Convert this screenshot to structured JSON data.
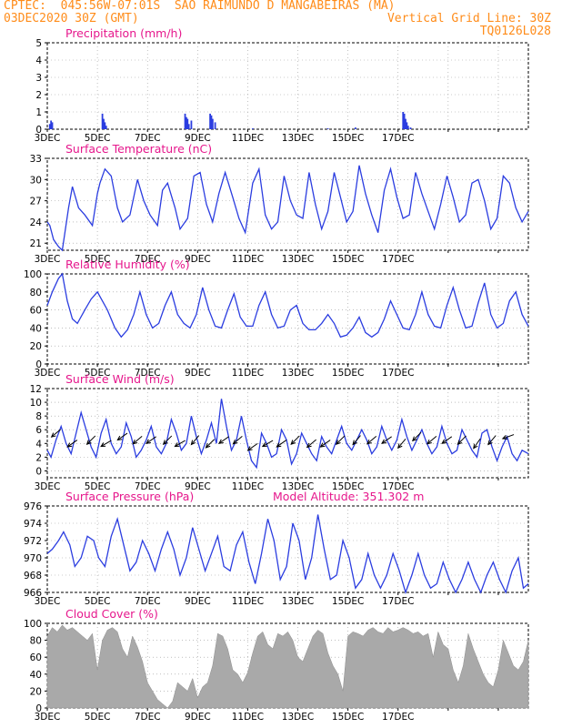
{
  "header": {
    "line1": "CPTEC:  045:56W-07:01S  SAO RAIMUNDO D MANGABEIRAS (MA)",
    "line2_left": "03DEC2020 30Z (GMT)",
    "line2_right": "Vertical Grid Line: 30Z",
    "line3_right": "TQ0126L028"
  },
  "colors": {
    "header": "#ff8c1a",
    "title": "#e6178c",
    "series": "#2b3de0",
    "cloud": "#a9a9a9"
  },
  "chart_data": [
    {
      "type": "bar",
      "title": "Precipitation (mm/h)",
      "ylim": [
        0,
        5
      ],
      "yticks": [
        0,
        1,
        2,
        3,
        4,
        5
      ],
      "xticks": [
        "3DEC",
        "5DEC",
        "7DEC",
        "9DEC",
        "11DEC",
        "13DEC",
        "15DEC",
        "17DEC"
      ],
      "x": [
        0.1,
        0.15,
        0.2,
        2.2,
        2.25,
        2.3,
        2.35,
        5.5,
        5.55,
        5.6,
        5.65,
        5.75,
        6.5,
        6.55,
        6.6,
        6.7,
        14.2,
        14.25,
        14.3,
        14.35,
        14.4,
        14.5,
        8.2,
        11.2,
        12.3
      ],
      "values": [
        0.3,
        0.5,
        0.4,
        0.9,
        0.6,
        0.4,
        0.2,
        0.9,
        0.7,
        0.6,
        0.3,
        0.5,
        0.9,
        0.8,
        0.6,
        0.4,
        1.0,
        0.9,
        0.6,
        0.4,
        0.2,
        0.1,
        0.05,
        0.05,
        0.1
      ]
    },
    {
      "type": "line",
      "title": "Surface Temperature (nC)",
      "ylim": [
        20,
        33
      ],
      "yticks": [
        21,
        24,
        27,
        30,
        33
      ],
      "xticks": [
        "3DEC",
        "5DEC",
        "7DEC",
        "9DEC",
        "11DEC",
        "13DEC",
        "15DEC",
        "17DEC"
      ],
      "x": [
        0,
        0.1,
        0.25,
        0.45,
        0.6,
        0.85,
        1.0,
        1.25,
        1.5,
        1.8,
        2.0,
        2.1,
        2.3,
        2.55,
        2.8,
        3.0,
        3.3,
        3.6,
        3.85,
        4.1,
        4.4,
        4.6,
        4.8,
        5.1,
        5.3,
        5.6,
        5.85,
        6.1,
        6.35,
        6.6,
        6.85,
        7.1,
        7.4,
        7.65,
        7.9,
        8.2,
        8.45,
        8.7,
        8.95,
        9.2,
        9.45,
        9.7,
        9.95,
        10.2,
        10.45,
        10.7,
        10.95,
        11.2,
        11.45,
        11.7,
        11.95,
        12.2,
        12.45,
        12.7,
        12.95,
        13.2,
        13.45,
        13.7,
        13.95,
        14.2,
        14.45,
        14.7,
        14.95,
        15.2,
        15.45,
        15.7,
        15.95,
        16.2,
        16.45,
        16.7,
        16.95,
        17.2,
        17.45,
        17.7,
        17.95,
        18.2,
        18.45,
        18.7,
        18.95,
        19.2
      ],
      "y": [
        24.0,
        23.5,
        21.5,
        20.5,
        20.0,
        26.0,
        29.0,
        26.0,
        25.0,
        23.5,
        28.0,
        29.5,
        31.5,
        30.5,
        26.0,
        24.0,
        25.0,
        30.0,
        27.0,
        25.0,
        23.5,
        28.5,
        29.5,
        26.0,
        23.0,
        24.5,
        30.5,
        31.0,
        26.5,
        24.0,
        28.0,
        31.0,
        27.5,
        24.5,
        22.5,
        29.5,
        31.5,
        25.0,
        23.0,
        24.0,
        30.5,
        27.0,
        25.0,
        24.5,
        31.0,
        26.5,
        23.0,
        25.5,
        31.0,
        27.5,
        24.0,
        25.5,
        32.0,
        28.0,
        25.0,
        22.5,
        28.5,
        31.5,
        27.5,
        24.5,
        25.0,
        31.0,
        28.0,
        25.5,
        23.0,
        26.5,
        30.5,
        27.5,
        24.0,
        25.0,
        29.5,
        30.0,
        27.0,
        23.0,
        24.5,
        30.5,
        29.5,
        26.0,
        24.0,
        25.5
      ]
    },
    {
      "type": "line",
      "title": "Relative Humidity (%)",
      "ylim": [
        0,
        100
      ],
      "yticks": [
        0,
        20,
        40,
        60,
        80,
        100
      ],
      "xticks": [
        "3DEC",
        "5DEC",
        "7DEC",
        "9DEC",
        "11DEC",
        "13DEC",
        "15DEC",
        "17DEC"
      ],
      "x": [
        0,
        0.2,
        0.45,
        0.6,
        0.8,
        1.0,
        1.2,
        1.5,
        1.75,
        2.0,
        2.2,
        2.4,
        2.7,
        2.95,
        3.2,
        3.45,
        3.7,
        3.95,
        4.2,
        4.45,
        4.7,
        4.95,
        5.2,
        5.45,
        5.7,
        5.95,
        6.2,
        6.45,
        6.7,
        6.95,
        7.2,
        7.45,
        7.7,
        7.95,
        8.2,
        8.45,
        8.7,
        8.95,
        9.2,
        9.45,
        9.7,
        9.95,
        10.2,
        10.45,
        10.7,
        10.95,
        11.2,
        11.45,
        11.7,
        11.95,
        12.2,
        12.45,
        12.7,
        12.95,
        13.2,
        13.45,
        13.7,
        13.95,
        14.2,
        14.45,
        14.7,
        14.95,
        15.2,
        15.45,
        15.7,
        15.95,
        16.2,
        16.45,
        16.7,
        16.95,
        17.2,
        17.45,
        17.7,
        17.95,
        18.2,
        18.45,
        18.7,
        18.95,
        19.2
      ],
      "y": [
        65,
        80,
        95,
        100,
        70,
        50,
        45,
        60,
        72,
        80,
        70,
        60,
        40,
        30,
        38,
        55,
        80,
        55,
        40,
        45,
        65,
        80,
        55,
        45,
        40,
        55,
        85,
        60,
        42,
        40,
        60,
        78,
        52,
        42,
        42,
        65,
        80,
        55,
        40,
        42,
        60,
        65,
        45,
        38,
        38,
        45,
        55,
        45,
        30,
        32,
        40,
        52,
        35,
        30,
        35,
        50,
        70,
        55,
        40,
        38,
        55,
        80,
        55,
        42,
        40,
        65,
        85,
        60,
        40,
        42,
        68,
        90,
        55,
        40,
        45,
        70,
        80,
        55,
        42
      ]
    },
    {
      "type": "line",
      "title": "Surface Wind (m/s)",
      "ylim": [
        -1,
        12
      ],
      "yticks": [
        0,
        2,
        4,
        6,
        8,
        10,
        12
      ],
      "xticks": [
        "3DEC",
        "5DEC",
        "7DEC",
        "9DEC",
        "11DEC",
        "13DEC",
        "15DEC",
        "17DEC"
      ],
      "x": [
        0,
        0.15,
        0.35,
        0.55,
        0.75,
        0.95,
        1.15,
        1.35,
        1.55,
        1.75,
        1.95,
        2.15,
        2.35,
        2.55,
        2.75,
        2.95,
        3.15,
        3.35,
        3.55,
        3.75,
        3.95,
        4.15,
        4.35,
        4.55,
        4.75,
        4.95,
        5.15,
        5.35,
        5.55,
        5.75,
        5.95,
        6.15,
        6.35,
        6.55,
        6.75,
        6.95,
        7.15,
        7.35,
        7.55,
        7.75,
        7.95,
        8.15,
        8.35,
        8.55,
        8.75,
        8.95,
        9.15,
        9.35,
        9.55,
        9.75,
        9.95,
        10.15,
        10.35,
        10.55,
        10.75,
        10.95,
        11.15,
        11.35,
        11.55,
        11.75,
        11.95,
        12.15,
        12.35,
        12.55,
        12.75,
        12.95,
        13.15,
        13.35,
        13.55,
        13.75,
        13.95,
        14.15,
        14.35,
        14.55,
        14.75,
        14.95,
        15.15,
        15.35,
        15.55,
        15.75,
        15.95,
        16.15,
        16.35,
        16.55,
        16.75,
        16.95,
        17.15,
        17.35,
        17.55,
        17.75,
        17.95,
        18.15,
        18.35,
        18.55,
        18.75,
        18.95,
        19.2
      ],
      "y": [
        3.0,
        2.0,
        4.5,
        6.5,
        4.0,
        2.5,
        5.5,
        8.5,
        6.0,
        3.5,
        2.0,
        5.5,
        7.5,
        4.0,
        2.5,
        3.5,
        7.0,
        5.0,
        2.0,
        3.0,
        4.5,
        6.5,
        3.5,
        2.5,
        4.0,
        7.5,
        5.5,
        3.0,
        4.0,
        8.0,
        5.0,
        2.5,
        4.5,
        7.0,
        4.0,
        10.5,
        6.5,
        3.0,
        4.5,
        8.0,
        4.5,
        1.5,
        0.5,
        5.5,
        4.0,
        2.0,
        2.5,
        6.0,
        4.5,
        1.0,
        2.5,
        5.5,
        4.0,
        2.5,
        1.5,
        5.0,
        3.5,
        2.5,
        4.5,
        6.5,
        4.0,
        3.0,
        4.5,
        6.0,
        4.5,
        2.5,
        3.5,
        6.5,
        4.5,
        3.0,
        4.5,
        7.5,
        5.0,
        3.0,
        4.5,
        6.0,
        4.0,
        2.5,
        3.5,
        6.5,
        4.0,
        2.5,
        3.0,
        6.0,
        4.5,
        3.0,
        2.0,
        5.5,
        6.0,
        3.5,
        1.5,
        3.5,
        5.0,
        2.5,
        1.5,
        3.0,
        2.5
      ],
      "arrows_x": [
        0.35,
        1.0,
        1.75,
        2.35,
        3.0,
        3.6,
        4.15,
        4.8,
        5.3,
        5.9,
        6.5,
        7.05,
        7.6,
        8.2,
        8.8,
        9.35,
        9.9,
        10.55,
        11.1,
        11.7,
        12.35,
        12.95,
        13.55,
        14.15,
        14.75,
        15.35,
        15.95,
        16.55,
        17.15,
        17.75,
        18.4
      ],
      "arrows_y": [
        5.5,
        4.0,
        4.5,
        4.0,
        5.0,
        4.5,
        4.5,
        4.5,
        4.0,
        4.5,
        4.0,
        4.5,
        4.5,
        3.5,
        4.0,
        4.0,
        4.5,
        4.0,
        4.0,
        4.5,
        4.5,
        4.5,
        4.5,
        4.0,
        5.0,
        4.5,
        4.5,
        4.5,
        4.0,
        4.5,
        5.0
      ],
      "arrows_dir": [
        220,
        215,
        225,
        210,
        215,
        220,
        215,
        225,
        210,
        230,
        225,
        215,
        220,
        215,
        210,
        215,
        225,
        220,
        215,
        225,
        230,
        220,
        215,
        230,
        225,
        220,
        215,
        225,
        235,
        230,
        200
      ]
    },
    {
      "type": "line",
      "title": "Surface Pressure (hPa)",
      "annotation": "Model Altitude: 351.302 m",
      "ylim": [
        966,
        976
      ],
      "yticks": [
        966,
        968,
        970,
        972,
        974,
        976
      ],
      "xticks": [
        "3DEC",
        "5DEC",
        "7DEC",
        "9DEC",
        "11DEC",
        "13DEC",
        "15DEC",
        "17DEC"
      ],
      "x": [
        0,
        0.2,
        0.45,
        0.65,
        0.9,
        1.1,
        1.35,
        1.6,
        1.85,
        2.05,
        2.3,
        2.55,
        2.8,
        3.05,
        3.3,
        3.55,
        3.8,
        4.05,
        4.3,
        4.55,
        4.8,
        5.05,
        5.3,
        5.55,
        5.8,
        6.05,
        6.3,
        6.55,
        6.8,
        7.05,
        7.3,
        7.55,
        7.8,
        8.05,
        8.3,
        8.55,
        8.8,
        9.05,
        9.3,
        9.55,
        9.8,
        10.05,
        10.3,
        10.55,
        10.8,
        11.05,
        11.3,
        11.55,
        11.8,
        12.05,
        12.3,
        12.55,
        12.8,
        13.05,
        13.3,
        13.55,
        13.8,
        14.05,
        14.3,
        14.55,
        14.8,
        15.05,
        15.3,
        15.55,
        15.8,
        16.05,
        16.3,
        16.55,
        16.8,
        17.05,
        17.3,
        17.55,
        17.8,
        18.05,
        18.3,
        18.55,
        18.8,
        19.0,
        19.2
      ],
      "y": [
        970.5,
        971.0,
        972.0,
        973.0,
        971.5,
        969.0,
        970.0,
        972.5,
        972.0,
        970.0,
        969.0,
        972.5,
        974.5,
        971.5,
        968.5,
        969.5,
        972.0,
        970.5,
        968.5,
        971.0,
        973.0,
        971.0,
        968.0,
        970.0,
        973.5,
        971.0,
        968.5,
        970.5,
        972.5,
        969.0,
        968.5,
        971.5,
        973.0,
        969.5,
        967.0,
        970.5,
        974.5,
        972.0,
        967.5,
        969.0,
        974.0,
        972.0,
        967.5,
        970.0,
        975.0,
        971.0,
        967.5,
        968.0,
        972.0,
        970.0,
        966.5,
        967.5,
        970.5,
        968.0,
        966.5,
        968.0,
        970.5,
        968.5,
        966.0,
        968.0,
        970.5,
        968.0,
        966.5,
        967.0,
        969.5,
        967.5,
        966.0,
        967.5,
        969.5,
        967.5,
        966.0,
        968.0,
        969.5,
        967.5,
        965.5,
        968.5,
        970.0,
        966.5,
        967.0
      ]
    },
    {
      "type": "area",
      "title": "Cloud Cover (%)",
      "ylim": [
        0,
        100
      ],
      "yticks": [
        0,
        20,
        40,
        60,
        80,
        100
      ],
      "xticks": [
        "3DEC",
        "5DEC",
        "7DEC",
        "9DEC",
        "11DEC",
        "13DEC",
        "15DEC",
        "17DEC"
      ],
      "x": [
        0.0,
        0.2,
        0.4,
        0.6,
        0.8,
        1.0,
        1.2,
        1.4,
        1.6,
        1.8,
        2.0,
        2.2,
        2.4,
        2.6,
        2.8,
        3.0,
        3.2,
        3.4,
        3.6,
        3.8,
        4.0,
        4.2,
        4.4,
        4.6,
        4.8,
        5.0,
        5.2,
        5.4,
        5.6,
        5.8,
        6.0,
        6.2,
        6.4,
        6.6,
        6.8,
        7.0,
        7.2,
        7.4,
        7.6,
        7.8,
        8.0,
        8.2,
        8.4,
        8.6,
        8.8,
        9.0,
        9.2,
        9.4,
        9.6,
        9.8,
        10.0,
        10.2,
        10.4,
        10.6,
        10.8,
        11.0,
        11.2,
        11.4,
        11.6,
        11.8,
        12.0,
        12.2,
        12.4,
        12.6,
        12.8,
        13.0,
        13.2,
        13.4,
        13.6,
        13.8,
        14.0,
        14.2,
        14.4,
        14.6,
        14.8,
        15.0,
        15.2,
        15.4,
        15.6,
        15.8,
        16.0,
        16.2,
        16.4,
        16.6,
        16.8,
        17.0,
        17.2,
        17.4,
        17.6,
        17.8,
        18.0,
        18.2,
        18.4,
        18.6,
        18.8,
        19.0,
        19.2
      ],
      "y": [
        85,
        95,
        90,
        98,
        92,
        95,
        90,
        85,
        80,
        88,
        45,
        80,
        92,
        95,
        90,
        70,
        60,
        85,
        72,
        55,
        30,
        20,
        10,
        5,
        0,
        8,
        30,
        25,
        20,
        35,
        12,
        25,
        30,
        50,
        88,
        85,
        70,
        45,
        40,
        30,
        42,
        65,
        85,
        90,
        75,
        70,
        88,
        85,
        90,
        80,
        60,
        55,
        70,
        85,
        92,
        88,
        65,
        50,
        40,
        20,
        85,
        90,
        88,
        85,
        92,
        95,
        90,
        88,
        95,
        90,
        92,
        95,
        92,
        88,
        90,
        85,
        88,
        60,
        90,
        75,
        70,
        45,
        30,
        50,
        88,
        70,
        55,
        40,
        30,
        25,
        45,
        80,
        65,
        50,
        45,
        55,
        80
      ]
    }
  ]
}
